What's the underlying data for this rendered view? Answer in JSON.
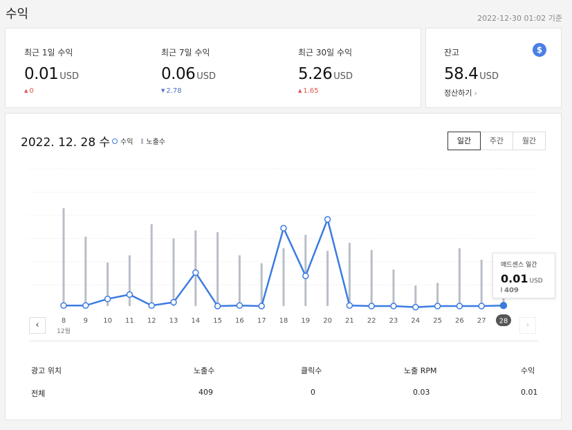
{
  "page": {
    "title": "수익",
    "timestamp": "2022-12-30 01:02 기준"
  },
  "stats": [
    {
      "label": "최근 1일 수익",
      "value": "0.01",
      "unit": "USD",
      "delta": "0",
      "direction": "up"
    },
    {
      "label": "최근 7일 수익",
      "value": "0.06",
      "unit": "USD",
      "delta": "2.78",
      "direction": "down"
    },
    {
      "label": "최근 30일 수익",
      "value": "5.26",
      "unit": "USD",
      "delta": "1.65",
      "direction": "up"
    }
  ],
  "balance": {
    "label": "잔고",
    "value": "58.4",
    "unit": "USD",
    "link": "정산하기",
    "icon": "dollar-icon",
    "icon_glyph": "$",
    "icon_color": "#4a7fe6"
  },
  "chart_header": {
    "date": "2022. 12. 28 수",
    "legend_revenue": "수익",
    "legend_impressions": "노출수",
    "tabs": [
      {
        "label": "일간",
        "active": true
      },
      {
        "label": "주간",
        "active": false
      },
      {
        "label": "월간",
        "active": false
      }
    ]
  },
  "chart_data": {
    "type": "line",
    "x": [
      "8",
      "9",
      "10",
      "11",
      "12",
      "13",
      "14",
      "15",
      "16",
      "17",
      "18",
      "19",
      "20",
      "21",
      "22",
      "23",
      "24",
      "25",
      "26",
      "27",
      "28"
    ],
    "month_label": "12월",
    "selected": "28",
    "series": [
      {
        "name": "수익",
        "type": "line",
        "color": "#3b7be0",
        "values": [
          0.01,
          0.01,
          0.13,
          0.21,
          0.01,
          0.07,
          0.61,
          0.0,
          0.01,
          0.0,
          1.42,
          0.55,
          1.58,
          0.01,
          0.0,
          0.0,
          -0.02,
          0.0,
          0.0,
          0.0,
          0.01
        ]
      },
      {
        "name": "노출수",
        "type": "bar",
        "color": "#b8bec6",
        "values": [
          1100,
          780,
          490,
          570,
          920,
          760,
          850,
          830,
          570,
          480,
          650,
          800,
          620,
          710,
          630,
          410,
          230,
          260,
          650,
          520,
          409
        ]
      }
    ],
    "revenue_range": [
      0,
      2.5
    ],
    "impressions_range": [
      0,
      1540
    ]
  },
  "tooltip": {
    "label": "애드센스 일간",
    "value": "0.01",
    "unit": "USD",
    "impressions": "409"
  },
  "table": {
    "headers": [
      "광고 위치",
      "노출수",
      "클릭수",
      "노출 RPM",
      "수익"
    ],
    "rows": [
      [
        "전체",
        "409",
        "0",
        "0.03",
        "0.01"
      ]
    ]
  },
  "nav": {
    "prev": "‹",
    "next": "›"
  }
}
